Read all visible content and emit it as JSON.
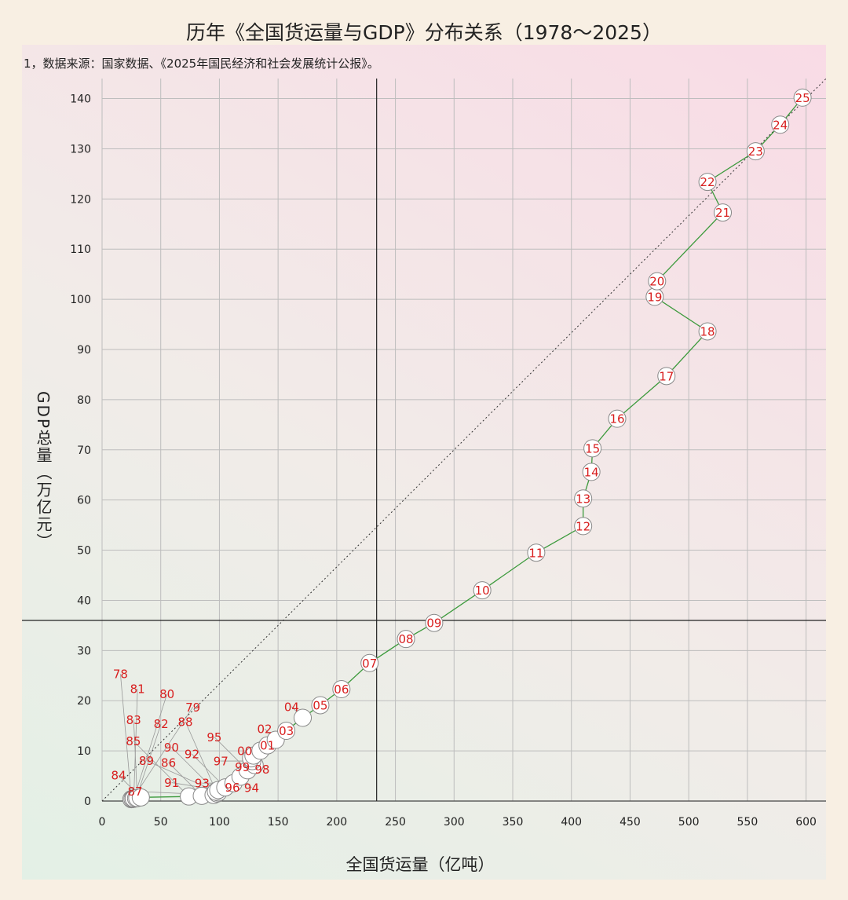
{
  "chart_data": {
    "type": "scatter",
    "title": "历年《全国货运量与GDP》分布关系（1978～2025）",
    "note": "1，数据来源：国家数据、《2025年国民经济和社会发展统计公报》。",
    "xlabel": "全国货运量（亿吨）",
    "ylabel": "GDP总量（万亿元）",
    "xlim": [
      0,
      617
    ],
    "ylim": [
      0,
      144
    ],
    "xticks": [
      0,
      50,
      100,
      150,
      200,
      250,
      300,
      350,
      400,
      450,
      500,
      550,
      600
    ],
    "yticks": [
      0,
      10,
      20,
      30,
      40,
      50,
      60,
      70,
      80,
      90,
      100,
      110,
      120,
      130,
      140
    ],
    "grid": true,
    "connected": true,
    "reference_lines": {
      "vertical_x": 234,
      "horizontal_y": 36,
      "diagonal": "from (0,0) through (600,140)"
    },
    "colors": {
      "line": "#3c9a3c",
      "label": "#d81e1e",
      "marker_fill": "#ffffff",
      "marker_stroke": "#888888",
      "grid": "#bdbdbd"
    },
    "points": [
      {
        "label": "78",
        "x": 25,
        "y": 0.37
      },
      {
        "label": "79",
        "x": 26,
        "y": 0.41
      },
      {
        "label": "80",
        "x": 27,
        "y": 0.46
      },
      {
        "label": "81",
        "x": 27,
        "y": 0.49
      },
      {
        "label": "82",
        "x": 29,
        "y": 0.54
      },
      {
        "label": "83",
        "x": 30,
        "y": 0.6
      },
      {
        "label": "84",
        "x": 33,
        "y": 0.73
      },
      {
        "label": "85",
        "x": 74,
        "y": 0.91
      },
      {
        "label": "86",
        "x": 85,
        "y": 1.04
      },
      {
        "label": "87",
        "x": 95,
        "y": 1.22
      },
      {
        "label": "88",
        "x": 98,
        "y": 1.51
      },
      {
        "label": "89",
        "x": 99,
        "y": 1.72
      },
      {
        "label": "90",
        "x": 97,
        "y": 1.89
      },
      {
        "label": "91",
        "x": 99,
        "y": 2.2
      },
      {
        "label": "92",
        "x": 105,
        "y": 2.72
      },
      {
        "label": "93",
        "x": 112,
        "y": 3.57
      },
      {
        "label": "94",
        "x": 118,
        "y": 4.86
      },
      {
        "label": "95",
        "x": 124,
        "y": 6.13
      },
      {
        "label": "96",
        "x": 130,
        "y": 7.18
      },
      {
        "label": "97",
        "x": 128,
        "y": 7.97
      },
      {
        "label": "98",
        "x": 127,
        "y": 8.52
      },
      {
        "label": "99",
        "x": 129,
        "y": 9.06
      },
      {
        "label": "00",
        "x": 135,
        "y": 10.03
      },
      {
        "label": "01",
        "x": 141,
        "y": 11.1
      },
      {
        "label": "02",
        "x": 148,
        "y": 12.2
      },
      {
        "label": "03",
        "x": 157,
        "y": 14.0
      },
      {
        "label": "04",
        "x": 171,
        "y": 16.6
      },
      {
        "label": "05",
        "x": 186,
        "y": 19.1
      },
      {
        "label": "06",
        "x": 204,
        "y": 22.3
      },
      {
        "label": "07",
        "x": 228,
        "y": 27.5
      },
      {
        "label": "08",
        "x": 259,
        "y": 32.3
      },
      {
        "label": "09",
        "x": 283,
        "y": 35.5
      },
      {
        "label": "10",
        "x": 324,
        "y": 42.0
      },
      {
        "label": "11",
        "x": 370,
        "y": 49.5
      },
      {
        "label": "12",
        "x": 410,
        "y": 54.8
      },
      {
        "label": "13",
        "x": 410,
        "y": 60.3
      },
      {
        "label": "14",
        "x": 417,
        "y": 65.6
      },
      {
        "label": "15",
        "x": 418,
        "y": 70.3
      },
      {
        "label": "16",
        "x": 439,
        "y": 76.2
      },
      {
        "label": "17",
        "x": 481,
        "y": 84.7
      },
      {
        "label": "18",
        "x": 516,
        "y": 93.6
      },
      {
        "label": "19",
        "x": 471,
        "y": 100.5
      },
      {
        "label": "20",
        "x": 473,
        "y": 103.6
      },
      {
        "label": "21",
        "x": 529,
        "y": 117.3
      },
      {
        "label": "22",
        "x": 516,
        "y": 123.4
      },
      {
        "label": "23",
        "x": 557,
        "y": 129.5
      },
      {
        "label": "24",
        "x": 578,
        "y": 134.8
      },
      {
        "label": "25",
        "x": 597,
        "y": 140.2
      }
    ]
  }
}
